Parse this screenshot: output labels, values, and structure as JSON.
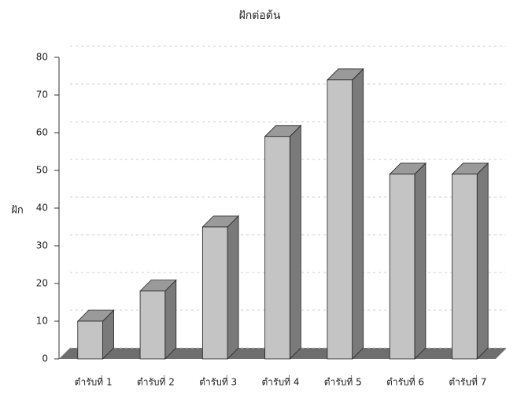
{
  "chart_data": {
    "type": "bar",
    "title": "ฝักต่อต้น",
    "y_label": "ฝัก",
    "categories": [
      "ตำรับที่ 1",
      "ตำรับที่ 2",
      "ตำรับที่ 3",
      "ตำรับที่ 4",
      "ตำรับที่ 5",
      "ตำรับที่ 6",
      "ตำรับที่ 7"
    ],
    "values": [
      10,
      18,
      35,
      59,
      74,
      49,
      49
    ],
    "color": "#c4c4c4",
    "ylim": [
      0,
      80
    ],
    "yticks": [
      0,
      10,
      20,
      30,
      40,
      50,
      60,
      70,
      80
    ],
    "grid": true
  }
}
